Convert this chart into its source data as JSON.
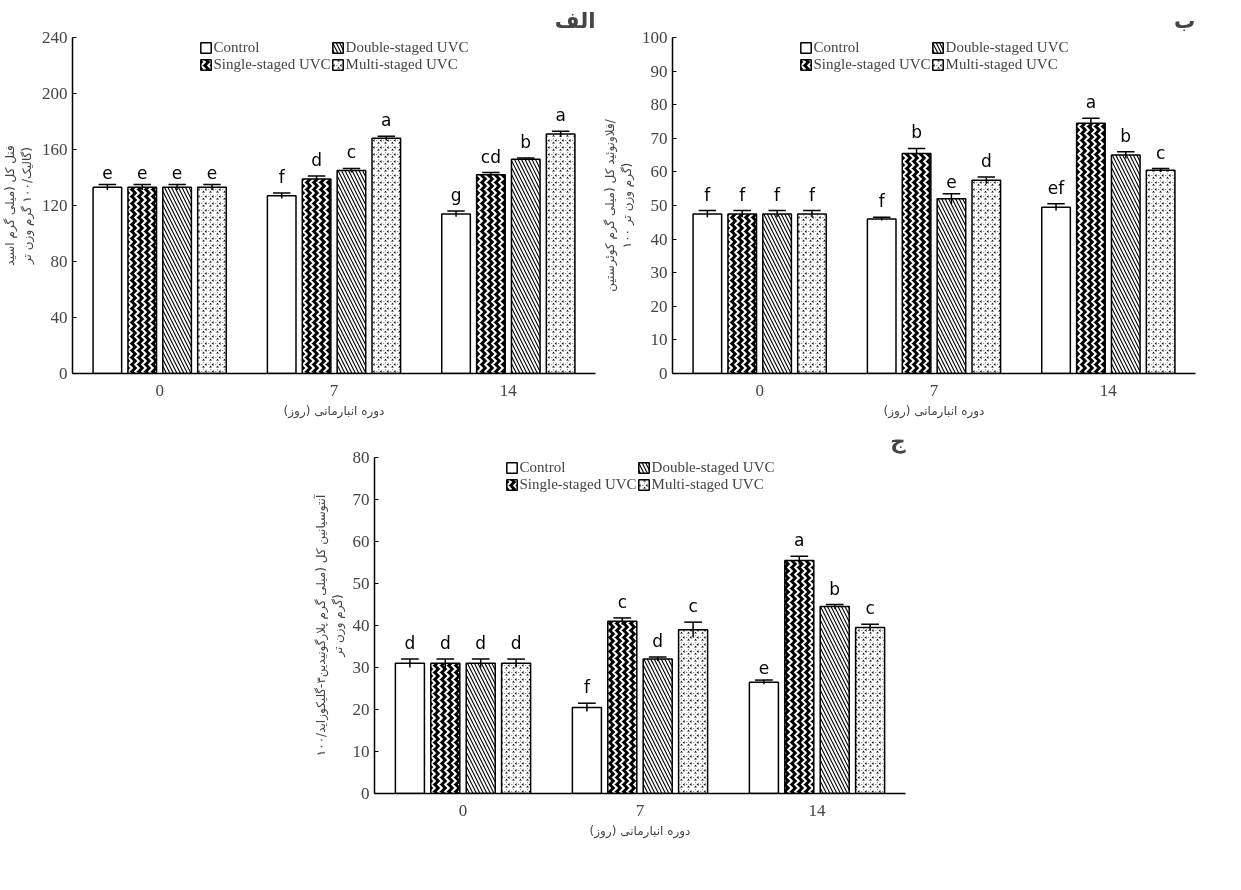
{
  "chart_data": [
    {
      "type": "bar",
      "title": "الف",
      "xlabel": "دوره انبارمانی (روز)",
      "ylabel": "فنل کل (میلی گرم اسید گالیک/۱۰۰ گرم وزن تر)",
      "categories": [
        "0",
        "7",
        "14"
      ],
      "ylim": [
        0,
        240
      ],
      "yticks": [
        0,
        40,
        80,
        120,
        160,
        200,
        240
      ],
      "grid": false,
      "legend": "top",
      "series": [
        {
          "name": "Control",
          "color": "#ffffff",
          "values": [
            133,
            127,
            114
          ],
          "errors": [
            2,
            2,
            2
          ],
          "value_labels": [
            "e",
            "f",
            "g"
          ]
        },
        {
          "name": "Single-staged UVC",
          "color": "#000000",
          "values": [
            133,
            139,
            142
          ],
          "errors": [
            2,
            2,
            1.5
          ],
          "value_labels": [
            "e",
            "d",
            "cd"
          ]
        },
        {
          "name": "Double-staged UVC",
          "color": "#000000",
          "values": [
            133,
            145,
            153
          ],
          "errors": [
            2,
            1.5,
            1
          ],
          "value_labels": [
            "e",
            "c",
            "b"
          ]
        },
        {
          "name": "Multi-staged UVC",
          "color": "#000000",
          "values": [
            133,
            168,
            171
          ],
          "errors": [
            2,
            1.5,
            2
          ],
          "value_labels": [
            "e",
            "a",
            "a"
          ]
        }
      ]
    },
    {
      "type": "bar",
      "title": "ب",
      "xlabel": "دوره انبارمانی (روز)",
      "ylabel": "فلاونوئید کل (میلی گرم کوئرستین/ ۱۰۰ گرم وزن تر)",
      "categories": [
        "0",
        "7",
        "14"
      ],
      "ylim": [
        0,
        100
      ],
      "yticks": [
        0,
        10,
        20,
        30,
        40,
        50,
        60,
        70,
        80,
        90,
        100
      ],
      "grid": false,
      "legend": "top",
      "series": [
        {
          "name": "Control",
          "color": "#ffffff",
          "values": [
            47.5,
            46,
            49.5
          ],
          "errors": [
            1,
            0.5,
            1
          ],
          "value_labels": [
            "f",
            "f",
            "ef"
          ]
        },
        {
          "name": "Single-staged UVC",
          "color": "#000000",
          "values": [
            47.5,
            65.5,
            74.5
          ],
          "errors": [
            1,
            1.5,
            1.5
          ],
          "value_labels": [
            "f",
            "b",
            "a"
          ]
        },
        {
          "name": "Double-staged UVC",
          "color": "#000000",
          "values": [
            47.5,
            52,
            65
          ],
          "errors": [
            1,
            1.5,
            1
          ],
          "value_labels": [
            "f",
            "e",
            "b"
          ]
        },
        {
          "name": "Multi-staged UVC",
          "color": "#000000",
          "values": [
            47.5,
            57.5,
            60.5
          ],
          "errors": [
            1,
            1,
            0.5
          ],
          "value_labels": [
            "f",
            "d",
            "c"
          ]
        }
      ]
    },
    {
      "type": "bar",
      "title": "ج",
      "xlabel": "دوره انبارمانی (روز)",
      "ylabel": "آنتوسیانین کل (میلی گرم پلارگونیدین۳-گلیکوزاید/۱۰۰ گرم وزن تر)",
      "categories": [
        "0",
        "7",
        "14"
      ],
      "ylim": [
        0,
        80
      ],
      "yticks": [
        0,
        10,
        20,
        30,
        40,
        50,
        60,
        70,
        80
      ],
      "grid": false,
      "legend": "top",
      "series": [
        {
          "name": "Control",
          "color": "#ffffff",
          "values": [
            31,
            20.5,
            26.5
          ],
          "errors": [
            1,
            1,
            0.5
          ],
          "value_labels": [
            "d",
            "f",
            "e"
          ]
        },
        {
          "name": "Single-staged UVC",
          "color": "#000000",
          "values": [
            31,
            41,
            55.5
          ],
          "errors": [
            1,
            0.8,
            1
          ],
          "value_labels": [
            "d",
            "c",
            "a"
          ]
        },
        {
          "name": "Double-staged UVC",
          "color": "#000000",
          "values": [
            31,
            32,
            44.5
          ],
          "errors": [
            1,
            0.5,
            0.5
          ],
          "value_labels": [
            "d",
            "d",
            "b"
          ]
        },
        {
          "name": "Multi-staged UVC",
          "color": "#000000",
          "values": [
            31,
            39,
            39.5
          ],
          "errors": [
            1,
            1.8,
            0.8
          ],
          "value_labels": [
            "d",
            "c",
            "c"
          ]
        }
      ]
    }
  ]
}
